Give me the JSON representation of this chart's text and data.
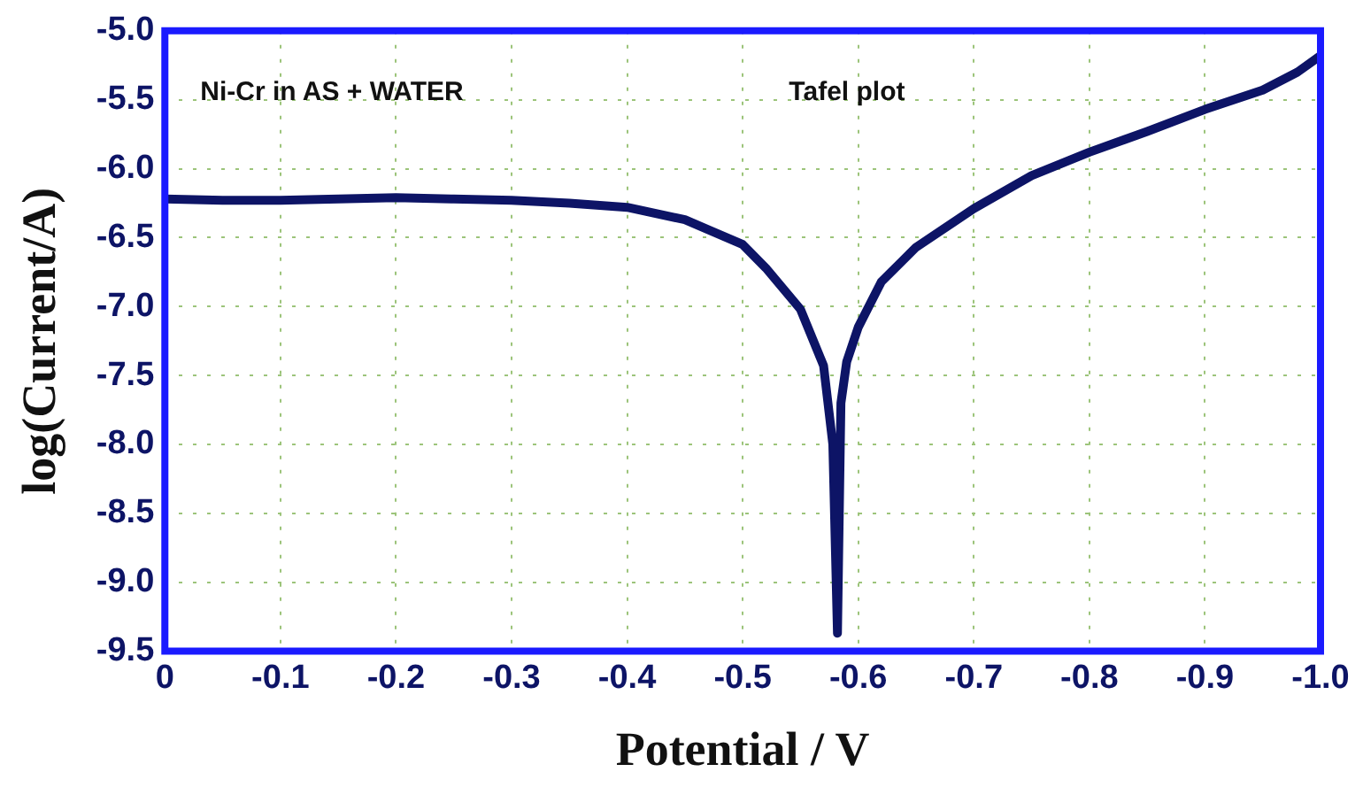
{
  "chart_data": {
    "type": "line",
    "xlabel": "Potential / V",
    "ylabel": "log(Current/A)",
    "annotations": [
      "Ni-Cr in AS + WATER",
      "Tafel plot"
    ],
    "x": [
      0,
      -0.05,
      -0.1,
      -0.15,
      -0.2,
      -0.25,
      -0.3,
      -0.35,
      -0.4,
      -0.45,
      -0.5,
      -0.52,
      -0.55,
      -0.57,
      -0.578,
      -0.582,
      -0.585,
      -0.59,
      -0.6,
      -0.62,
      -0.65,
      -0.7,
      -0.75,
      -0.8,
      -0.85,
      -0.9,
      -0.95,
      -0.98,
      -1.0
    ],
    "series": [
      {
        "color": "#0d1466",
        "values": [
          -6.22,
          -6.23,
          -6.23,
          -6.22,
          -6.21,
          -6.22,
          -6.23,
          -6.25,
          -6.28,
          -6.37,
          -6.55,
          -6.72,
          -7.02,
          -7.43,
          -8.0,
          -9.37,
          -7.7,
          -7.4,
          -7.15,
          -6.82,
          -6.57,
          -6.29,
          -6.05,
          -5.88,
          -5.73,
          -5.57,
          -5.43,
          -5.3,
          -5.18
        ]
      }
    ],
    "xlim": [
      0,
      -1.0
    ],
    "xticks": [
      0,
      -0.1,
      -0.2,
      -0.3,
      -0.4,
      -0.5,
      -0.6,
      -0.7,
      -0.8,
      -0.9,
      {
        "value": -1,
        "label": "-1.0"
      }
    ],
    "ylim": [
      -9.5,
      -5.0
    ],
    "yticks": [
      {
        "value": -9.5,
        "label": "-9.5"
      },
      {
        "value": -9,
        "label": "-9.0"
      },
      {
        "value": -8.5,
        "label": "-8.5"
      },
      {
        "value": -8,
        "label": "-8.0"
      },
      {
        "value": -7.5,
        "label": "-7.5"
      },
      {
        "value": -7,
        "label": "-7.0"
      },
      {
        "value": -6.5,
        "label": "-6.5"
      },
      {
        "value": -6,
        "label": "-6.0"
      },
      {
        "value": -5.5,
        "label": "-5.5"
      },
      {
        "value": -5,
        "label": "-5.0"
      }
    ],
    "grid": true,
    "legend": false,
    "marker": "none",
    "line_style": "solid"
  }
}
